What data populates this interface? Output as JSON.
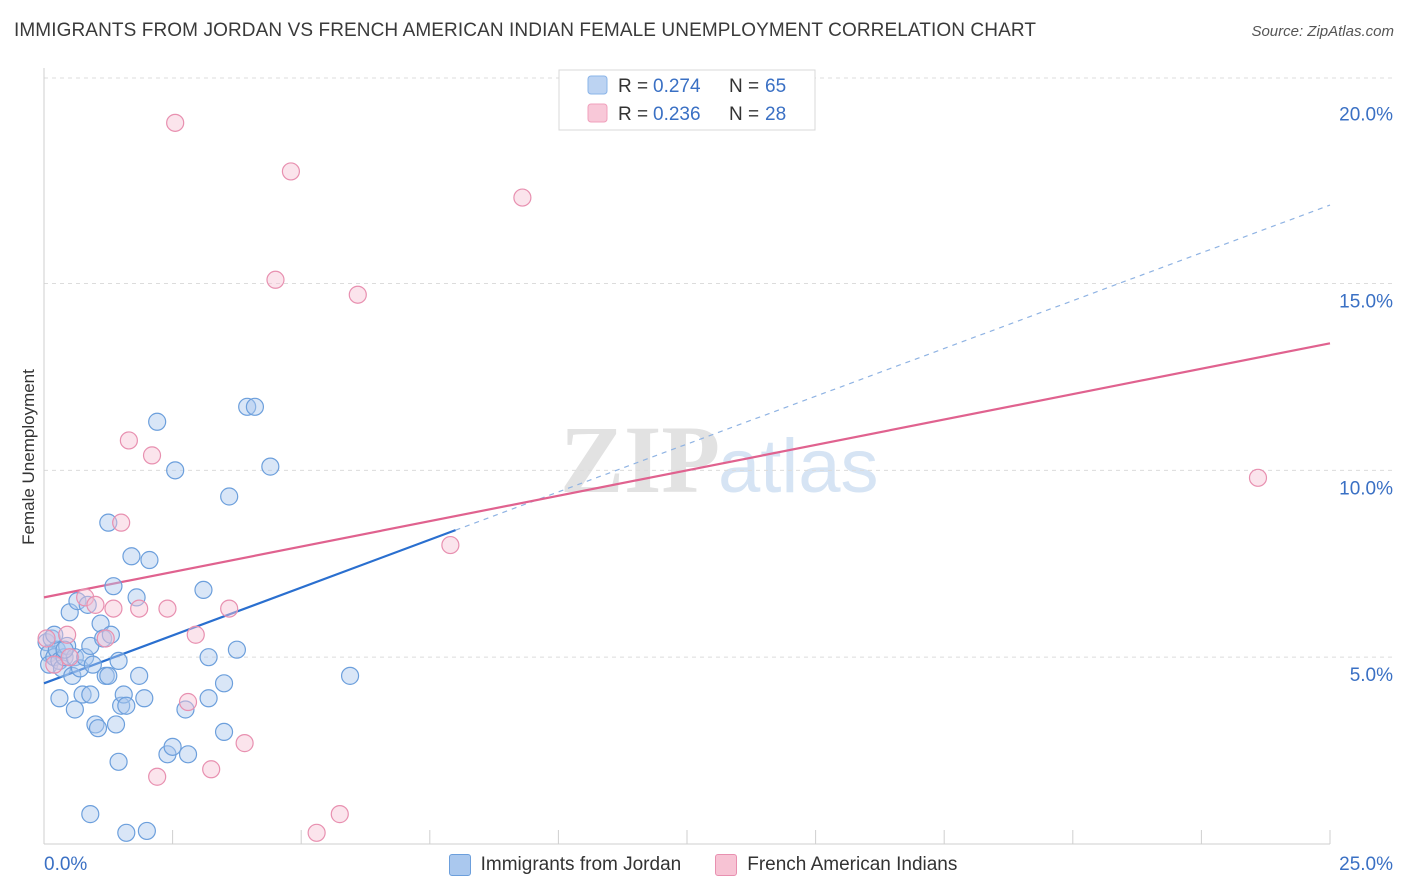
{
  "title": "IMMIGRANTS FROM JORDAN VS FRENCH AMERICAN INDIAN FEMALE UNEMPLOYMENT CORRELATION CHART",
  "source": "Source: ZipAtlas.com",
  "watermark": {
    "zip": "ZIP",
    "atlas": "atlas"
  },
  "legend_top": [
    {
      "r_label": "R =",
      "r_value": "0.274",
      "n_label": "N =",
      "n_value": "65",
      "color": "#8ab4e8",
      "fill": "#bcd3f2"
    },
    {
      "r_label": "R =",
      "r_value": "0.236",
      "n_label": "N =",
      "n_value": "28",
      "color": "#f0a0bc",
      "fill": "#f8c8d8"
    }
  ],
  "colors": {
    "blue_stroke": "#6c9fdc",
    "blue_fill": "#aac8ee",
    "blue_line": "#2a6fcf",
    "pink_stroke": "#e890b0",
    "pink_fill": "#f7c3d4",
    "pink_line": "#e0628f",
    "value_text": "#3a70c4"
  },
  "chart_data": {
    "type": "scatter",
    "title": "IMMIGRANTS FROM JORDAN VS FRENCH AMERICAN INDIAN FEMALE UNEMPLOYMENT CORRELATION CHART",
    "xlabel": "",
    "ylabel": "Female Unemployment",
    "xlim": [
      0,
      25
    ],
    "ylim": [
      0,
      20.5
    ],
    "x_tick_labels": [
      {
        "value": 0,
        "label": "0.0%"
      },
      {
        "value": 25,
        "label": "25.0%"
      }
    ],
    "y_tick_labels": [
      {
        "value": 5,
        "label": "5.0%"
      },
      {
        "value": 10,
        "label": "10.0%"
      },
      {
        "value": 15,
        "label": "15.0%"
      },
      {
        "value": 20,
        "label": "20.0%"
      }
    ],
    "gridlines": [
      5,
      10,
      15,
      20.5
    ],
    "series": [
      {
        "name": "Immigrants from Jordan",
        "r": 0.274,
        "n": 65,
        "trend": {
          "x0": 0,
          "y0": 4.3,
          "x1": 8.0,
          "y1": 8.4,
          "dash_x1": 25,
          "dash_y1": 17.1
        },
        "points": [
          [
            0.05,
            5.4
          ],
          [
            0.1,
            5.1
          ],
          [
            0.15,
            5.5
          ],
          [
            0.1,
            4.8
          ],
          [
            0.2,
            5.0
          ],
          [
            0.25,
            5.2
          ],
          [
            0.3,
            4.9
          ],
          [
            0.35,
            4.7
          ],
          [
            0.4,
            5.0
          ],
          [
            0.45,
            5.3
          ],
          [
            0.5,
            6.2
          ],
          [
            0.55,
            4.5
          ],
          [
            0.6,
            5.0
          ],
          [
            0.65,
            6.5
          ],
          [
            0.7,
            4.7
          ],
          [
            0.75,
            4.0
          ],
          [
            0.8,
            5.0
          ],
          [
            0.85,
            6.4
          ],
          [
            0.9,
            4.0
          ],
          [
            0.9,
            5.3
          ],
          [
            0.95,
            4.8
          ],
          [
            1.0,
            3.2
          ],
          [
            1.05,
            3.1
          ],
          [
            1.1,
            5.9
          ],
          [
            1.15,
            5.5
          ],
          [
            1.2,
            4.5
          ],
          [
            1.25,
            8.6
          ],
          [
            1.3,
            5.6
          ],
          [
            1.35,
            6.9
          ],
          [
            1.4,
            3.2
          ],
          [
            1.45,
            4.9
          ],
          [
            1.5,
            3.7
          ],
          [
            1.55,
            4.0
          ],
          [
            1.6,
            3.7
          ],
          [
            1.7,
            7.7
          ],
          [
            1.8,
            6.6
          ],
          [
            1.85,
            4.5
          ],
          [
            1.95,
            3.9
          ],
          [
            2.05,
            7.6
          ],
          [
            2.2,
            11.3
          ],
          [
            2.4,
            2.4
          ],
          [
            2.5,
            2.6
          ],
          [
            2.55,
            10.0
          ],
          [
            2.75,
            3.6
          ],
          [
            2.8,
            2.4
          ],
          [
            3.1,
            6.8
          ],
          [
            3.2,
            5.0
          ],
          [
            3.2,
            3.9
          ],
          [
            3.5,
            4.3
          ],
          [
            3.5,
            3.0
          ],
          [
            3.6,
            9.3
          ],
          [
            3.75,
            5.2
          ],
          [
            3.95,
            11.7
          ],
          [
            4.1,
            11.7
          ],
          [
            4.4,
            10.1
          ],
          [
            5.95,
            4.5
          ],
          [
            0.9,
            0.8
          ],
          [
            1.6,
            0.3
          ],
          [
            2.0,
            0.35
          ],
          [
            1.45,
            2.2
          ],
          [
            0.3,
            3.9
          ],
          [
            0.6,
            3.6
          ],
          [
            1.25,
            4.5
          ],
          [
            0.4,
            5.2
          ],
          [
            0.2,
            5.6
          ]
        ]
      },
      {
        "name": "French American Indians",
        "r": 0.236,
        "n": 28,
        "trend": {
          "x0": 0,
          "y0": 6.6,
          "x1": 25,
          "y1": 13.4
        },
        "points": [
          [
            0.05,
            5.5
          ],
          [
            0.2,
            4.8
          ],
          [
            0.45,
            5.6
          ],
          [
            0.5,
            5.0
          ],
          [
            0.8,
            6.6
          ],
          [
            1.0,
            6.4
          ],
          [
            1.2,
            5.5
          ],
          [
            1.35,
            6.3
          ],
          [
            1.5,
            8.6
          ],
          [
            1.65,
            10.8
          ],
          [
            1.85,
            6.3
          ],
          [
            2.1,
            10.4
          ],
          [
            2.2,
            1.8
          ],
          [
            2.4,
            6.3
          ],
          [
            2.55,
            19.3
          ],
          [
            2.8,
            3.8
          ],
          [
            2.95,
            5.6
          ],
          [
            3.25,
            2.0
          ],
          [
            3.6,
            6.3
          ],
          [
            3.9,
            2.7
          ],
          [
            4.5,
            15.1
          ],
          [
            4.8,
            18.0
          ],
          [
            5.3,
            0.3
          ],
          [
            5.75,
            0.8
          ],
          [
            6.1,
            14.7
          ],
          [
            7.9,
            8.0
          ],
          [
            9.3,
            17.3
          ],
          [
            23.6,
            9.8
          ]
        ]
      }
    ]
  },
  "legend_bottom": [
    {
      "label": "Immigrants from Jordan"
    },
    {
      "label": "French American Indians"
    }
  ]
}
